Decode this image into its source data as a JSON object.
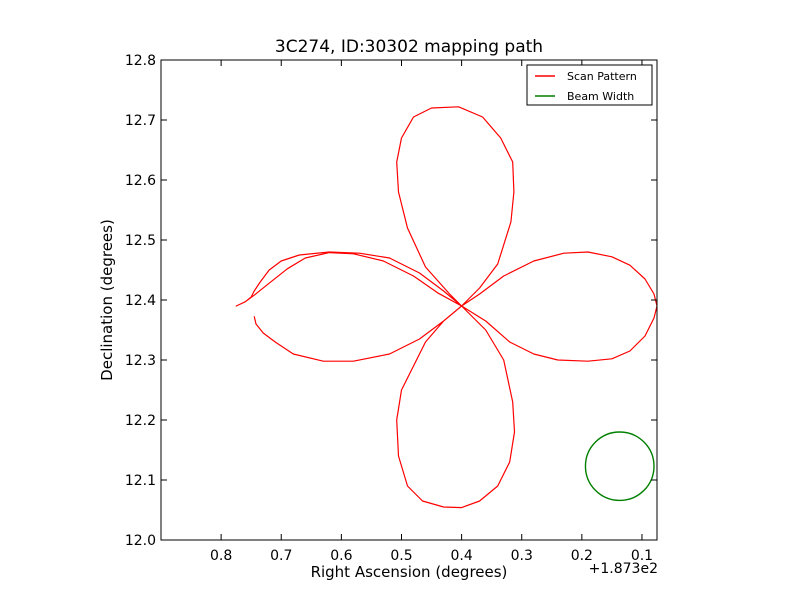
{
  "chart_data": {
    "type": "line",
    "title": "3C274, ID:30302 mapping path",
    "xlabel": "Right Ascension (degrees)",
    "ylabel": "Declination (degrees)",
    "x_offset_label": "+1.873e2",
    "xlim": [
      0.9,
      0.075
    ],
    "ylim": [
      12.0,
      12.8
    ],
    "x_inverted": true,
    "xticks": [
      0.8,
      0.7,
      0.6,
      0.5,
      0.4,
      0.3,
      0.2,
      0.1
    ],
    "xtick_labels": [
      "0.8",
      "0.7",
      "0.6",
      "0.5",
      "0.4",
      "0.3",
      "0.2",
      "0.1"
    ],
    "yticks": [
      12.0,
      12.1,
      12.2,
      12.3,
      12.4,
      12.5,
      12.6,
      12.7,
      12.8
    ],
    "ytick_labels": [
      "12.0",
      "12.1",
      "12.2",
      "12.3",
      "12.4",
      "12.5",
      "12.6",
      "12.7",
      "12.8"
    ],
    "legend_position": "top-right",
    "series": [
      {
        "name": "Scan Pattern",
        "color": "#ff0000",
        "points": [
          [
            0.745,
            12.373
          ],
          [
            0.742,
            12.36
          ],
          [
            0.73,
            12.345
          ],
          [
            0.71,
            12.33
          ],
          [
            0.68,
            12.31
          ],
          [
            0.63,
            12.298
          ],
          [
            0.58,
            12.298
          ],
          [
            0.52,
            12.31
          ],
          [
            0.47,
            12.335
          ],
          [
            0.43,
            12.365
          ],
          [
            0.4,
            12.39
          ],
          [
            0.42,
            12.41
          ],
          [
            0.46,
            12.455
          ],
          [
            0.49,
            12.52
          ],
          [
            0.505,
            12.58
          ],
          [
            0.508,
            12.63
          ],
          [
            0.5,
            12.67
          ],
          [
            0.48,
            12.705
          ],
          [
            0.45,
            12.72
          ],
          [
            0.405,
            12.722
          ],
          [
            0.365,
            12.705
          ],
          [
            0.335,
            12.67
          ],
          [
            0.315,
            12.63
          ],
          [
            0.313,
            12.58
          ],
          [
            0.318,
            12.53
          ],
          [
            0.34,
            12.46
          ],
          [
            0.37,
            12.42
          ],
          [
            0.4,
            12.39
          ],
          [
            0.43,
            12.415
          ],
          [
            0.47,
            12.445
          ],
          [
            0.52,
            12.47
          ],
          [
            0.57,
            12.478
          ],
          [
            0.62,
            12.48
          ],
          [
            0.67,
            12.475
          ],
          [
            0.7,
            12.465
          ],
          [
            0.72,
            12.45
          ],
          [
            0.735,
            12.43
          ],
          [
            0.745,
            12.415
          ],
          [
            0.75,
            12.405
          ],
          [
            0.76,
            12.397
          ],
          [
            0.775,
            12.39
          ],
          [
            0.775,
            12.39
          ],
          [
            0.76,
            12.397
          ],
          [
            0.745,
            12.408
          ],
          [
            0.72,
            12.428
          ],
          [
            0.69,
            12.452
          ],
          [
            0.66,
            12.47
          ],
          [
            0.62,
            12.479
          ],
          [
            0.58,
            12.477
          ],
          [
            0.53,
            12.465
          ],
          [
            0.48,
            12.44
          ],
          [
            0.44,
            12.412
          ],
          [
            0.4,
            12.39
          ],
          [
            0.36,
            12.365
          ],
          [
            0.32,
            12.33
          ],
          [
            0.28,
            12.31
          ],
          [
            0.24,
            12.3
          ],
          [
            0.19,
            12.298
          ],
          [
            0.15,
            12.302
          ],
          [
            0.12,
            12.315
          ],
          [
            0.095,
            12.34
          ],
          [
            0.08,
            12.37
          ],
          [
            0.075,
            12.39
          ],
          [
            0.08,
            12.41
          ],
          [
            0.095,
            12.435
          ],
          [
            0.12,
            12.458
          ],
          [
            0.15,
            12.472
          ],
          [
            0.19,
            12.48
          ],
          [
            0.23,
            12.478
          ],
          [
            0.28,
            12.465
          ],
          [
            0.33,
            12.44
          ],
          [
            0.37,
            12.41
          ],
          [
            0.4,
            12.39
          ],
          [
            0.43,
            12.365
          ],
          [
            0.46,
            12.33
          ],
          [
            0.485,
            12.28
          ],
          [
            0.5,
            12.25
          ],
          [
            0.508,
            12.2
          ],
          [
            0.505,
            12.14
          ],
          [
            0.49,
            12.09
          ],
          [
            0.465,
            12.065
          ],
          [
            0.43,
            12.055
          ],
          [
            0.4,
            12.054
          ],
          [
            0.37,
            12.065
          ],
          [
            0.34,
            12.09
          ],
          [
            0.32,
            12.13
          ],
          [
            0.312,
            12.18
          ],
          [
            0.315,
            12.23
          ],
          [
            0.33,
            12.3
          ],
          [
            0.36,
            12.35
          ],
          [
            0.4,
            12.39
          ]
        ]
      },
      {
        "name": "Beam Width",
        "color": "#008000",
        "shape": "circle",
        "center": [
          0.137,
          12.123
        ],
        "radius_x": 0.057,
        "radius_y": 0.057
      }
    ]
  }
}
